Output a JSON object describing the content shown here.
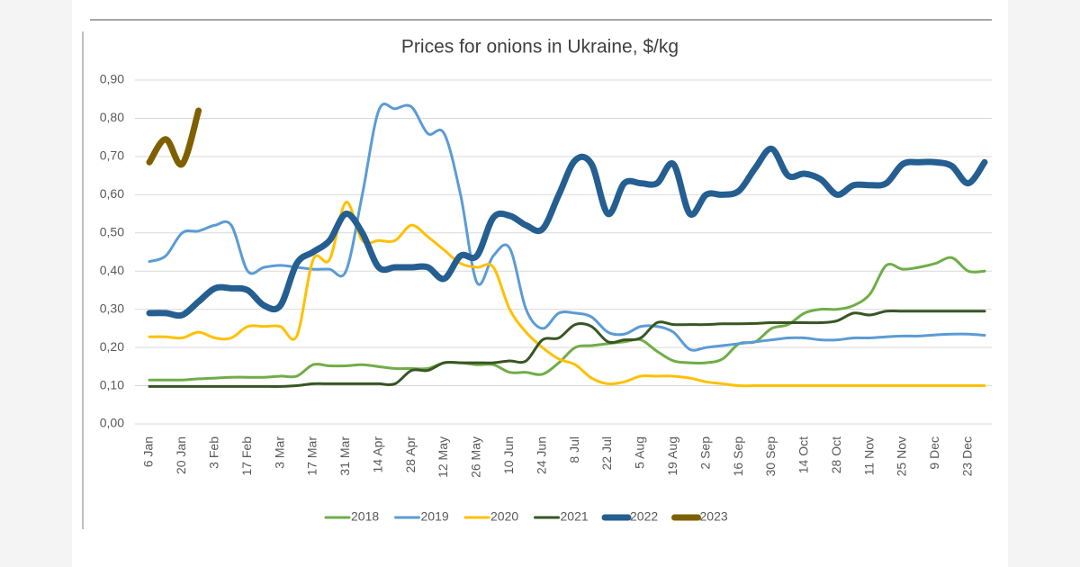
{
  "chart_data": {
    "type": "line",
    "title": "Prices for onions in Ukraine, $/kg",
    "categories": [
      "6 Jan",
      null,
      "20 Jan",
      null,
      "3 Feb",
      null,
      "17 Feb",
      null,
      "3 Mar",
      null,
      "17 Mar",
      null,
      "31 Mar",
      null,
      "14 Apr",
      null,
      "28 Apr",
      null,
      "12 May",
      null,
      "26 May",
      null,
      "10 Jun",
      null,
      "24 Jun",
      null,
      "8 Jul",
      null,
      "22 Jul",
      null,
      "5 Aug",
      null,
      "19 Aug",
      null,
      "2 Sep",
      null,
      "16 Sep",
      null,
      "30 Sep",
      null,
      "14 Oct",
      null,
      "28 Oct",
      null,
      "11 Nov",
      null,
      "25 Nov",
      null,
      "9 Dec",
      null,
      "23 Dec",
      null
    ],
    "ylim": [
      0,
      0.9
    ],
    "yticks": [
      {
        "value": 0,
        "label": "0,00"
      },
      {
        "value": 0.1,
        "label": "0,10"
      },
      {
        "value": 0.2,
        "label": "0,20"
      },
      {
        "value": 0.3,
        "label": "0,30"
      },
      {
        "value": 0.4,
        "label": "0,40"
      },
      {
        "value": 0.5,
        "label": "0,50"
      },
      {
        "value": 0.6,
        "label": "0,60"
      },
      {
        "value": 0.7,
        "label": "0,70"
      },
      {
        "value": 0.8,
        "label": "0,80"
      },
      {
        "value": 0.9,
        "label": "0,90"
      }
    ],
    "grid": true,
    "legend": "bottom",
    "series": [
      {
        "name": "2018",
        "color": "#70ad47",
        "width": 3,
        "values": [
          0.115,
          0.115,
          0.115,
          0.118,
          0.12,
          0.122,
          0.122,
          0.122,
          0.125,
          0.125,
          0.155,
          0.152,
          0.152,
          0.155,
          0.15,
          0.145,
          0.145,
          0.145,
          0.16,
          0.16,
          0.155,
          0.155,
          0.135,
          0.135,
          0.13,
          0.16,
          0.2,
          0.205,
          0.21,
          0.215,
          0.22,
          0.19,
          0.165,
          0.16,
          0.16,
          0.17,
          0.21,
          0.215,
          0.25,
          0.26,
          0.29,
          0.3,
          0.3,
          0.31,
          0.34,
          0.415,
          0.405,
          0.41,
          0.42,
          0.435,
          0.4,
          0.4
        ]
      },
      {
        "name": "2019",
        "color": "#5b9bd5",
        "width": 3,
        "values": [
          0.425,
          0.44,
          0.5,
          0.505,
          0.52,
          0.52,
          0.4,
          0.41,
          0.415,
          0.41,
          0.405,
          0.405,
          0.4,
          0.6,
          0.82,
          0.825,
          0.83,
          0.76,
          0.76,
          0.6,
          0.37,
          0.44,
          0.46,
          0.3,
          0.25,
          0.29,
          0.29,
          0.28,
          0.24,
          0.235,
          0.255,
          0.255,
          0.24,
          0.195,
          0.2,
          0.205,
          0.21,
          0.215,
          0.22,
          0.225,
          0.225,
          0.22,
          0.22,
          0.225,
          0.225,
          0.228,
          0.23,
          0.23,
          0.233,
          0.235,
          0.235,
          0.232
        ]
      },
      {
        "name": "2020",
        "color": "#ffc000",
        "width": 3,
        "values": [
          0.228,
          0.228,
          0.225,
          0.24,
          0.225,
          0.225,
          0.255,
          0.255,
          0.255,
          0.23,
          0.43,
          0.43,
          0.58,
          0.48,
          0.48,
          0.48,
          0.52,
          0.49,
          0.455,
          0.42,
          0.41,
          0.41,
          0.3,
          0.24,
          0.2,
          0.17,
          0.155,
          0.12,
          0.105,
          0.11,
          0.125,
          0.125,
          0.125,
          0.12,
          0.11,
          0.105,
          0.1,
          0.1,
          0.1,
          0.1,
          0.1,
          0.1,
          0.1,
          0.1,
          0.1,
          0.1,
          0.1,
          0.1,
          0.1,
          0.1,
          0.1,
          0.1
        ]
      },
      {
        "name": "2021",
        "color": "#375623",
        "width": 3,
        "values": [
          0.098,
          0.098,
          0.098,
          0.098,
          0.098,
          0.098,
          0.098,
          0.098,
          0.098,
          0.1,
          0.105,
          0.105,
          0.105,
          0.105,
          0.105,
          0.105,
          0.14,
          0.14,
          0.16,
          0.16,
          0.16,
          0.16,
          0.165,
          0.165,
          0.22,
          0.225,
          0.26,
          0.255,
          0.215,
          0.22,
          0.225,
          0.265,
          0.26,
          0.26,
          0.26,
          0.262,
          0.262,
          0.263,
          0.265,
          0.265,
          0.265,
          0.265,
          0.27,
          0.29,
          0.285,
          0.295,
          0.295,
          0.295,
          0.295,
          0.295,
          0.295,
          0.295
        ]
      },
      {
        "name": "2022",
        "color": "#255e91",
        "width": 7,
        "values": [
          0.29,
          0.29,
          0.285,
          0.32,
          0.355,
          0.355,
          0.35,
          0.31,
          0.31,
          0.42,
          0.45,
          0.48,
          0.55,
          0.5,
          0.41,
          0.41,
          0.41,
          0.41,
          0.38,
          0.44,
          0.44,
          0.54,
          0.545,
          0.52,
          0.51,
          0.6,
          0.69,
          0.68,
          0.55,
          0.63,
          0.63,
          0.63,
          0.68,
          0.55,
          0.6,
          0.6,
          0.61,
          0.67,
          0.72,
          0.65,
          0.655,
          0.64,
          0.6,
          0.625,
          0.625,
          0.63,
          0.68,
          0.685,
          0.685,
          0.675,
          0.63,
          0.685
        ]
      },
      {
        "name": "2023",
        "color": "#7f6000",
        "width": 7,
        "values": [
          0.685,
          0.745,
          0.68,
          0.82,
          null,
          null,
          null,
          null,
          null,
          null,
          null,
          null,
          null,
          null,
          null,
          null,
          null,
          null,
          null,
          null,
          null,
          null,
          null,
          null,
          null,
          null,
          null,
          null,
          null,
          null,
          null,
          null,
          null,
          null,
          null,
          null,
          null,
          null,
          null,
          null,
          null,
          null,
          null,
          null,
          null,
          null,
          null,
          null,
          null,
          null,
          null,
          null
        ]
      }
    ]
  }
}
